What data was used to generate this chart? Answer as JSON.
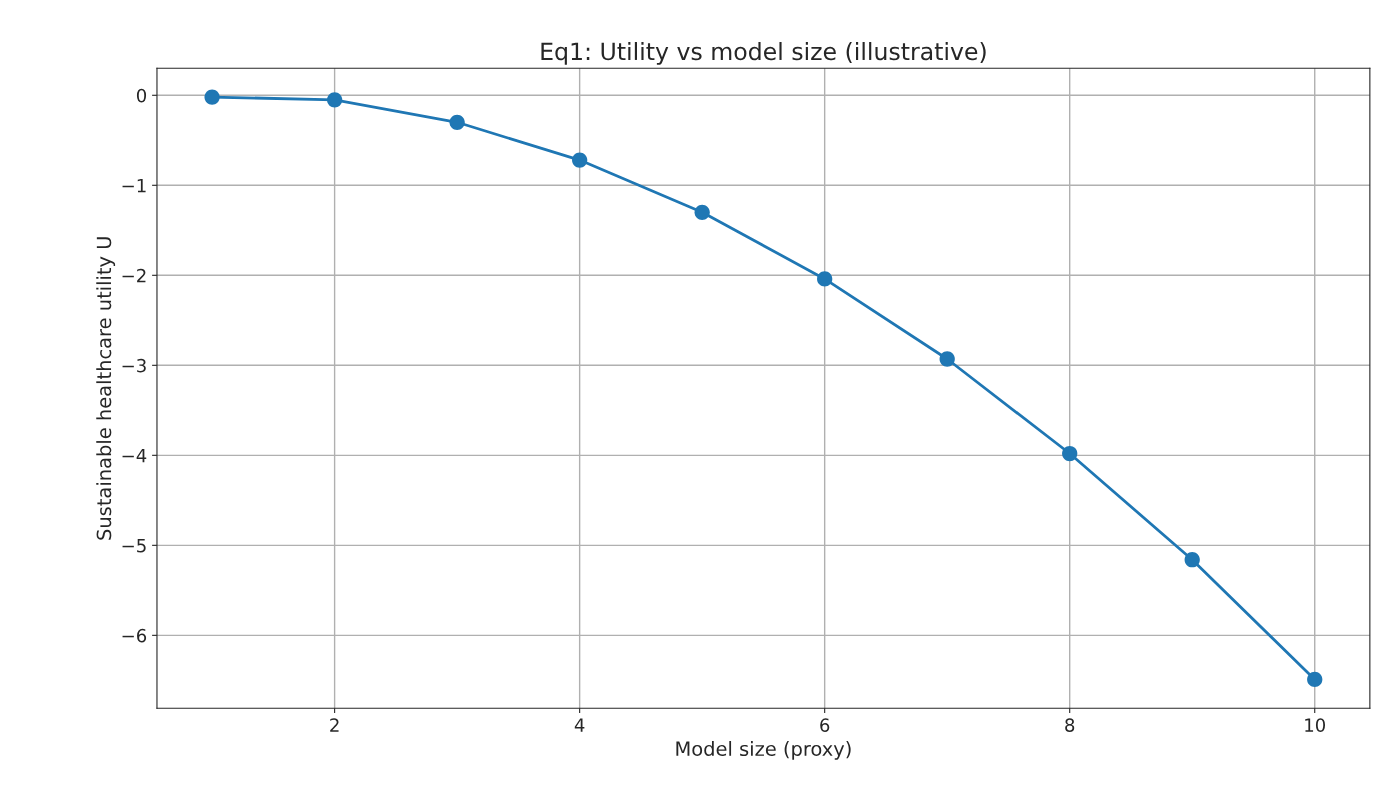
{
  "chart_data": {
    "type": "line",
    "title": "Eq1: Utility vs model size (illustrative)",
    "xlabel": "Model size (proxy)",
    "ylabel": "Sustainable healthcare utility U",
    "x": [
      1,
      2,
      3,
      4,
      5,
      6,
      7,
      8,
      9,
      10
    ],
    "series": [
      {
        "color": "#1f77b4",
        "values": [
          -0.02,
          -0.05,
          -0.3,
          -0.72,
          -1.3,
          -2.04,
          -2.93,
          -3.98,
          -5.16,
          -6.49
        ]
      }
    ],
    "xlim": [
      0.55,
      10.45
    ],
    "xticks": [
      2,
      4,
      6,
      8,
      10
    ],
    "ylim": [
      -6.81,
      0.3
    ],
    "yticks": [
      0,
      -1,
      -2,
      -3,
      -4,
      -5,
      -6
    ],
    "grid": true,
    "marker": "circle",
    "line_style": "solid"
  }
}
